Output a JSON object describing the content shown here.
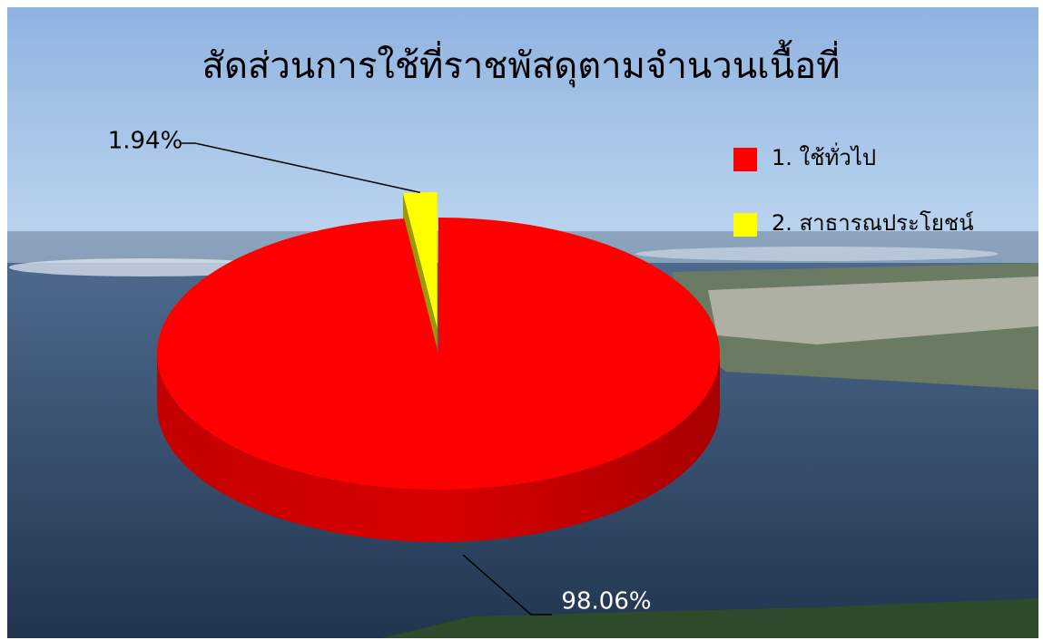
{
  "chart_data": {
    "type": "pie",
    "title": "สัดส่วนการใช้ที่ราชพัสดุตามจำนวนเนื้อที่",
    "categories": [
      "1. ใช้ทั่วไป",
      "2. สาธารณประโยชน์"
    ],
    "values": [
      98.06,
      1.94
    ],
    "value_labels": [
      "98.06%",
      "1.94%"
    ],
    "colors": [
      "#ff0000",
      "#ffff00"
    ],
    "legend": "right"
  }
}
